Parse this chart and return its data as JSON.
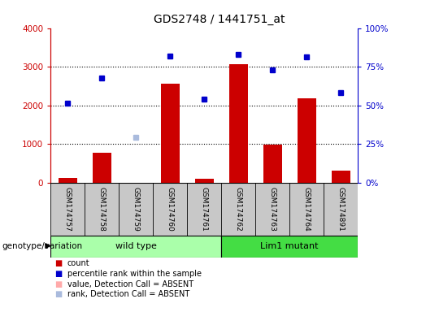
{
  "title": "GDS2748 / 1441751_at",
  "samples": [
    "GSM174757",
    "GSM174758",
    "GSM174759",
    "GSM174760",
    "GSM174761",
    "GSM174762",
    "GSM174763",
    "GSM174764",
    "GSM174891"
  ],
  "count_values": [
    120,
    780,
    0,
    2550,
    100,
    3060,
    980,
    2180,
    300
  ],
  "rank_values": [
    2050,
    2700,
    1180,
    3280,
    2160,
    3320,
    2920,
    3260,
    2330
  ],
  "rank_absent_index": 2,
  "groups": [
    {
      "label": "wild type",
      "start": 0,
      "end": 4,
      "color": "#AAFFAA"
    },
    {
      "label": "Lim1 mutant",
      "start": 5,
      "end": 8,
      "color": "#44DD44"
    }
  ],
  "ylim_left": [
    0,
    4000
  ],
  "ylim_right": [
    0,
    100
  ],
  "yticks_left": [
    0,
    1000,
    2000,
    3000,
    4000
  ],
  "yticks_right": [
    0,
    25,
    50,
    75,
    100
  ],
  "ytick_labels_left": [
    "0",
    "1000",
    "2000",
    "3000",
    "4000"
  ],
  "ytick_labels_right": [
    "0%",
    "25%",
    "50%",
    "75%",
    "100%"
  ],
  "bar_color": "#CC0000",
  "dot_color": "#0000CC",
  "absent_bar_color": "#FFAAAA",
  "absent_dot_color": "#AABBDD",
  "grid_color": "#000000",
  "bg_color": "#C8C8C8",
  "left_axis_color": "#CC0000",
  "right_axis_color": "#0000CC",
  "group_label": "genotype/variation",
  "legend_items": [
    {
      "color": "#CC0000",
      "label": "count"
    },
    {
      "color": "#0000CC",
      "label": "percentile rank within the sample"
    },
    {
      "color": "#FFAAAA",
      "label": "value, Detection Call = ABSENT"
    },
    {
      "color": "#AABBDD",
      "label": "rank, Detection Call = ABSENT"
    }
  ]
}
